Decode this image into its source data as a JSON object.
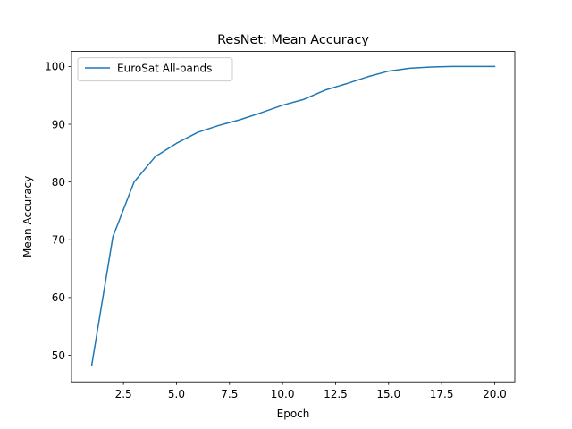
{
  "chart_data": {
    "type": "line",
    "title": "ResNet: Mean Accuracy",
    "xlabel": "Epoch",
    "ylabel": "Mean Accuracy",
    "xlim": [
      0.05,
      20.95
    ],
    "ylim": [
      45.4,
      102.6
    ],
    "x_ticks": [
      2.5,
      5.0,
      7.5,
      10.0,
      12.5,
      15.0,
      17.5,
      20.0
    ],
    "x_tick_labels": [
      "2.5",
      "5.0",
      "7.5",
      "10.0",
      "12.5",
      "15.0",
      "17.5",
      "20.0"
    ],
    "y_ticks": [
      50,
      60,
      70,
      80,
      90,
      100
    ],
    "y_tick_labels": [
      "50",
      "60",
      "70",
      "80",
      "90",
      "100"
    ],
    "grid": false,
    "legend_position": "top-left",
    "series": [
      {
        "name": "EuroSat All-bands",
        "color": "#1f77b4",
        "x": [
          1,
          2,
          3,
          4,
          5,
          6,
          7,
          8,
          9,
          10,
          11,
          12,
          13,
          14,
          15,
          16,
          17,
          18,
          19,
          20
        ],
        "y": [
          48.2,
          70.5,
          80.0,
          84.4,
          86.7,
          88.6,
          89.8,
          90.8,
          92.0,
          93.3,
          94.3,
          95.9,
          97.0,
          98.2,
          99.2,
          99.7,
          99.9,
          100.0,
          100.0,
          100.0
        ]
      }
    ]
  }
}
